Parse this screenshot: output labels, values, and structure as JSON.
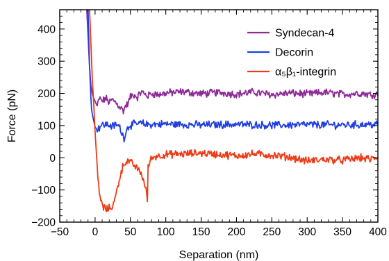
{
  "chart_data": {
    "type": "line",
    "title": "",
    "xlabel": "Separation (nm)",
    "ylabel": "Force (pN)",
    "xlim": [
      -50,
      400
    ],
    "ylim": [
      -200,
      460
    ],
    "xticks": [
      -50,
      0,
      50,
      100,
      150,
      200,
      250,
      300,
      350,
      400
    ],
    "xtick_labels": [
      "−50",
      "0",
      "50",
      "100",
      "150",
      "200",
      "250",
      "300",
      "350",
      "400"
    ],
    "yticks": [
      -200,
      -100,
      0,
      100,
      200,
      300,
      400
    ],
    "ytick_labels": [
      "−200",
      "−100",
      "0",
      "100",
      "200",
      "300",
      "400"
    ],
    "grid": false,
    "legend_position": "top-right",
    "series": [
      {
        "name": "Syndecan-4",
        "color": "#8e2a98",
        "points": [
          [
            -12,
            470
          ],
          [
            -10,
            380
          ],
          [
            -8,
            290
          ],
          [
            -6,
            225
          ],
          [
            -4,
            200
          ],
          [
            -2,
            185
          ],
          [
            0,
            176
          ],
          [
            3,
            160
          ],
          [
            6,
            185
          ],
          [
            10,
            175
          ],
          [
            15,
            185
          ],
          [
            20,
            172
          ],
          [
            25,
            180
          ],
          [
            30,
            170
          ],
          [
            35,
            158
          ],
          [
            40,
            146
          ],
          [
            43,
            160
          ],
          [
            47,
            170
          ],
          [
            50,
            190
          ],
          [
            55,
            196
          ],
          [
            60,
            188
          ],
          [
            65,
            205
          ],
          [
            70,
            198
          ],
          [
            75,
            192
          ],
          [
            80,
            200
          ],
          [
            90,
            196
          ],
          [
            100,
            201
          ],
          [
            125,
            205
          ],
          [
            150,
            199
          ],
          [
            175,
            203
          ],
          [
            200,
            198
          ],
          [
            225,
            204
          ],
          [
            250,
            196
          ],
          [
            275,
            201
          ],
          [
            300,
            198
          ],
          [
            325,
            203
          ],
          [
            350,
            197
          ],
          [
            375,
            201
          ],
          [
            390,
            196
          ],
          [
            400,
            198
          ]
        ]
      },
      {
        "name": "Decorin",
        "color": "#1f3fe0",
        "points": [
          [
            -10,
            470
          ],
          [
            -9,
            380
          ],
          [
            -8,
            300
          ],
          [
            -7,
            240
          ],
          [
            -6,
            190
          ],
          [
            -5,
            150
          ],
          [
            -3,
            125
          ],
          [
            0,
            95
          ],
          [
            3,
            88
          ],
          [
            8,
            100
          ],
          [
            15,
            104
          ],
          [
            25,
            98
          ],
          [
            30,
            103
          ],
          [
            35,
            95
          ],
          [
            38,
            75
          ],
          [
            41,
            62
          ],
          [
            44,
            84
          ],
          [
            48,
            100
          ],
          [
            55,
            104
          ],
          [
            65,
            107
          ],
          [
            75,
            103
          ],
          [
            100,
            105
          ],
          [
            150,
            102
          ],
          [
            200,
            104
          ],
          [
            250,
            101
          ],
          [
            300,
            103
          ],
          [
            350,
            102
          ],
          [
            400,
            104
          ]
        ]
      },
      {
        "name": "α₅β₁-integrin",
        "color": "#f03a17",
        "points": [
          [
            -8,
            470
          ],
          [
            -6,
            360
          ],
          [
            -4,
            250
          ],
          [
            -2,
            170
          ],
          [
            0,
            80
          ],
          [
            2,
            10
          ],
          [
            4,
            -60
          ],
          [
            6,
            -110
          ],
          [
            9,
            -140
          ],
          [
            12,
            -155
          ],
          [
            16,
            -160
          ],
          [
            20,
            -157
          ],
          [
            24,
            -152
          ],
          [
            28,
            -130
          ],
          [
            32,
            -90
          ],
          [
            36,
            -50
          ],
          [
            40,
            -22
          ],
          [
            44,
            -10
          ],
          [
            48,
            -12
          ],
          [
            52,
            -18
          ],
          [
            56,
            -25
          ],
          [
            60,
            -35
          ],
          [
            64,
            -45
          ],
          [
            68,
            -65
          ],
          [
            72,
            -100
          ],
          [
            74,
            -130
          ],
          [
            75,
            -30
          ],
          [
            77,
            -15
          ],
          [
            80,
            0
          ],
          [
            85,
            4
          ],
          [
            90,
            6
          ],
          [
            100,
            10
          ],
          [
            125,
            12
          ],
          [
            150,
            15
          ],
          [
            175,
            10
          ],
          [
            200,
            6
          ],
          [
            225,
            12
          ],
          [
            250,
            8
          ],
          [
            275,
            2
          ],
          [
            300,
            -10
          ],
          [
            325,
            -5
          ],
          [
            350,
            -8
          ],
          [
            375,
            0
          ],
          [
            390,
            -5
          ],
          [
            400,
            2
          ]
        ]
      }
    ]
  }
}
